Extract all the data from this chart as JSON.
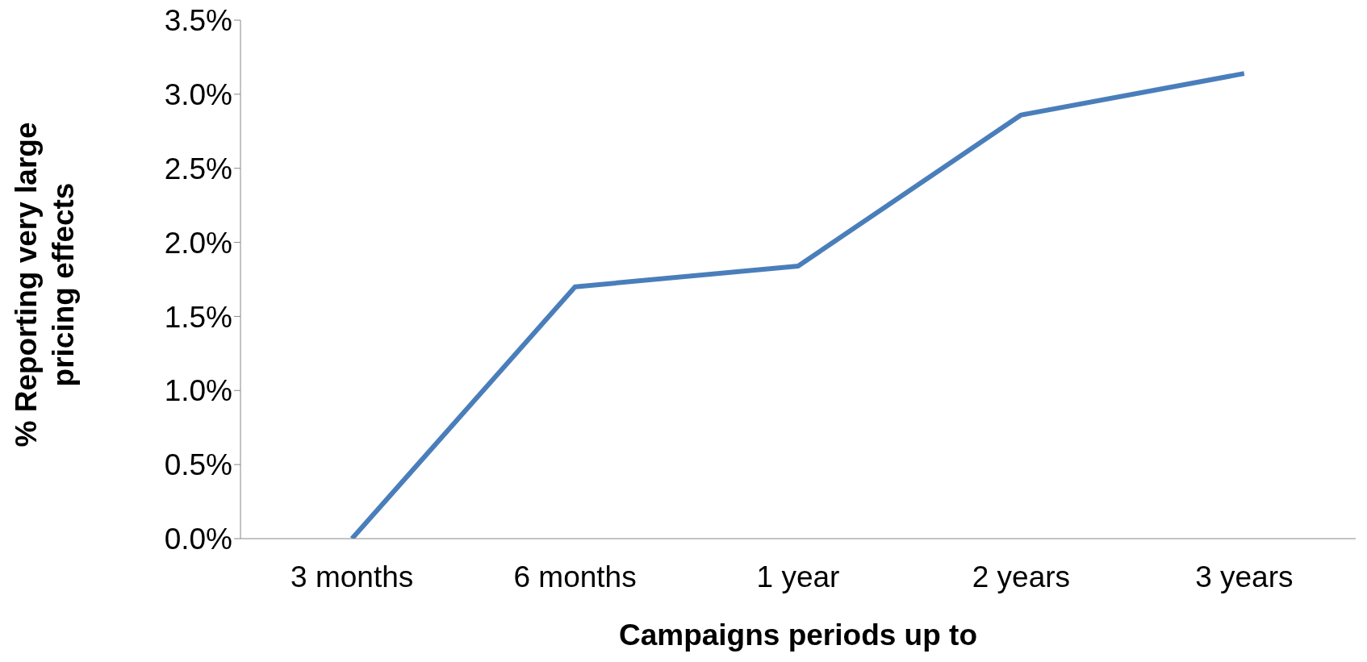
{
  "chart_data": {
    "type": "line",
    "xlabel": "Campaigns periods up to",
    "ylabel": "% Reporting very large pricing effects",
    "categories": [
      "3 months",
      "6 months",
      "1 year",
      "2 years",
      "3 years"
    ],
    "series": [
      {
        "color": "#4a7ebb",
        "values": [
          0,
          0.017,
          0.0184,
          0.0286,
          0.0314
        ]
      }
    ],
    "ylim": [
      0,
      0.035
    ],
    "yticks": [
      {
        "value": 0,
        "label": "0.0%"
      },
      {
        "value": 0.005,
        "label": "0.5%"
      },
      {
        "value": 0.01,
        "label": "1.0%"
      },
      {
        "value": 0.015,
        "label": "1.5%"
      },
      {
        "value": 0.02,
        "label": "2.0%"
      },
      {
        "value": 0.025,
        "label": "2.5%"
      },
      {
        "value": 0.03,
        "label": "3.0%"
      },
      {
        "value": 0.035,
        "label": "3.5%"
      }
    ],
    "grid": false,
    "marker": "none",
    "line_style": "solid"
  }
}
